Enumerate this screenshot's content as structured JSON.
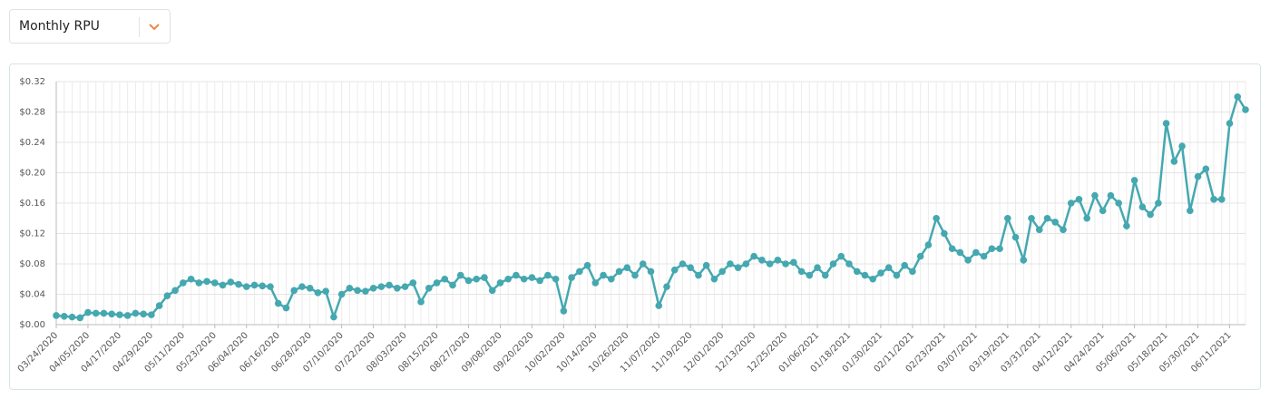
{
  "dropdown": {
    "selected": "Monthly RPU"
  },
  "chart_data": {
    "type": "line",
    "color": "#45a8b0",
    "grid": true,
    "x": [
      "03/24/2020",
      "03/27/2020",
      "03/30/2020",
      "04/02/2020",
      "04/05/2020",
      "04/08/2020",
      "04/11/2020",
      "04/14/2020",
      "04/17/2020",
      "04/20/2020",
      "04/23/2020",
      "04/26/2020",
      "04/29/2020",
      "05/02/2020",
      "05/05/2020",
      "05/08/2020",
      "05/11/2020",
      "05/14/2020",
      "05/17/2020",
      "05/20/2020",
      "05/23/2020",
      "05/26/2020",
      "05/29/2020",
      "06/01/2020",
      "06/04/2020",
      "06/07/2020",
      "06/10/2020",
      "06/13/2020",
      "06/16/2020",
      "06/19/2020",
      "06/22/2020",
      "06/25/2020",
      "06/28/2020",
      "07/01/2020",
      "07/04/2020",
      "07/07/2020",
      "07/10/2020",
      "07/13/2020",
      "07/16/2020",
      "07/19/2020",
      "07/22/2020",
      "07/25/2020",
      "07/28/2020",
      "07/31/2020",
      "08/03/2020",
      "08/06/2020",
      "08/09/2020",
      "08/12/2020",
      "08/15/2020",
      "08/18/2020",
      "08/21/2020",
      "08/24/2020",
      "08/27/2020",
      "08/30/2020",
      "09/02/2020",
      "09/05/2020",
      "09/08/2020",
      "09/11/2020",
      "09/14/2020",
      "09/17/2020",
      "09/20/2020",
      "09/23/2020",
      "09/26/2020",
      "09/29/2020",
      "10/02/2020",
      "10/05/2020",
      "10/08/2020",
      "10/11/2020",
      "10/14/2020",
      "10/17/2020",
      "10/20/2020",
      "10/23/2020",
      "10/26/2020",
      "10/29/2020",
      "11/01/2020",
      "11/04/2020",
      "11/07/2020",
      "11/10/2020",
      "11/13/2020",
      "11/16/2020",
      "11/19/2020",
      "11/22/2020",
      "11/25/2020",
      "11/28/2020",
      "12/01/2020",
      "12/04/2020",
      "12/07/2020",
      "12/10/2020",
      "12/13/2020",
      "12/16/2020",
      "12/19/2020",
      "12/22/2020",
      "12/25/2020",
      "12/28/2020",
      "12/31/2020",
      "01/03/2021",
      "01/06/2021",
      "01/09/2021",
      "01/12/2021",
      "01/15/2021",
      "01/18/2021",
      "01/21/2021",
      "01/24/2021",
      "01/27/2021",
      "01/30/2021",
      "02/02/2021",
      "02/05/2021",
      "02/08/2021",
      "02/11/2021",
      "02/14/2021",
      "02/17/2021",
      "02/20/2021",
      "02/23/2021",
      "02/26/2021",
      "03/01/2021",
      "03/04/2021",
      "03/07/2021",
      "03/10/2021",
      "03/13/2021",
      "03/16/2021",
      "03/19/2021",
      "03/22/2021",
      "03/25/2021",
      "03/28/2021",
      "03/31/2021",
      "04/03/2021",
      "04/06/2021",
      "04/09/2021",
      "04/12/2021",
      "04/15/2021",
      "04/18/2021",
      "04/21/2021",
      "04/24/2021",
      "04/27/2021",
      "04/30/2021",
      "05/03/2021",
      "05/06/2021",
      "05/09/2021",
      "05/12/2021",
      "05/15/2021",
      "05/18/2021",
      "05/21/2021",
      "05/24/2021",
      "05/27/2021",
      "05/30/2021",
      "06/02/2021",
      "06/05/2021",
      "06/08/2021",
      "06/11/2021",
      "06/14/2021",
      "06/17/2021"
    ],
    "values": [
      0.012,
      0.011,
      0.01,
      0.009,
      0.016,
      0.015,
      0.015,
      0.014,
      0.013,
      0.012,
      0.015,
      0.014,
      0.013,
      0.025,
      0.038,
      0.045,
      0.055,
      0.06,
      0.055,
      0.057,
      0.055,
      0.052,
      0.056,
      0.053,
      0.05,
      0.052,
      0.051,
      0.05,
      0.028,
      0.022,
      0.045,
      0.05,
      0.048,
      0.042,
      0.044,
      0.01,
      0.04,
      0.048,
      0.045,
      0.044,
      0.048,
      0.05,
      0.052,
      0.048,
      0.05,
      0.055,
      0.03,
      0.048,
      0.055,
      0.06,
      0.052,
      0.065,
      0.058,
      0.06,
      0.062,
      0.045,
      0.055,
      0.06,
      0.065,
      0.06,
      0.062,
      0.058,
      0.065,
      0.06,
      0.018,
      0.062,
      0.07,
      0.078,
      0.055,
      0.065,
      0.06,
      0.07,
      0.075,
      0.065,
      0.08,
      0.07,
      0.025,
      0.05,
      0.072,
      0.08,
      0.075,
      0.065,
      0.078,
      0.06,
      0.07,
      0.08,
      0.075,
      0.08,
      0.09,
      0.085,
      0.08,
      0.085,
      0.08,
      0.082,
      0.07,
      0.065,
      0.075,
      0.065,
      0.08,
      0.09,
      0.08,
      0.07,
      0.065,
      0.06,
      0.068,
      0.075,
      0.065,
      0.078,
      0.07,
      0.09,
      0.105,
      0.14,
      0.12,
      0.1,
      0.095,
      0.085,
      0.095,
      0.09,
      0.1,
      0.1,
      0.14,
      0.115,
      0.085,
      0.14,
      0.125,
      0.14,
      0.135,
      0.125,
      0.16,
      0.165,
      0.14,
      0.17,
      0.15,
      0.17,
      0.16,
      0.13,
      0.19,
      0.155,
      0.145,
      0.16,
      0.265,
      0.215,
      0.235,
      0.15,
      0.195,
      0.205,
      0.165,
      0.165,
      0.265,
      0.3,
      0.283
    ],
    "xticks": [
      "03/24/2020",
      "04/05/2020",
      "04/17/2020",
      "04/29/2020",
      "05/11/2020",
      "05/23/2020",
      "06/04/2020",
      "06/16/2020",
      "06/28/2020",
      "07/10/2020",
      "07/22/2020",
      "08/03/2020",
      "08/15/2020",
      "08/27/2020",
      "09/08/2020",
      "09/20/2020",
      "10/02/2020",
      "10/14/2020",
      "10/26/2020",
      "11/07/2020",
      "11/19/2020",
      "12/01/2020",
      "12/13/2020",
      "12/25/2020",
      "01/06/2021",
      "01/18/2021",
      "01/30/2021",
      "02/11/2021",
      "02/23/2021",
      "03/07/2021",
      "03/19/2021",
      "03/31/2021",
      "04/12/2021",
      "04/24/2021",
      "05/06/2021",
      "05/18/2021",
      "05/30/2021",
      "06/11/2021"
    ],
    "ylim": [
      0,
      0.32
    ],
    "yticks": [
      {
        "value": 0,
        "label": "$0.00"
      },
      {
        "value": 0.04,
        "label": "$0.04"
      },
      {
        "value": 0.08,
        "label": "$0.08"
      },
      {
        "value": 0.12,
        "label": "$0.12"
      },
      {
        "value": 0.16,
        "label": "$0.16"
      },
      {
        "value": 0.2,
        "label": "$0.20"
      },
      {
        "value": 0.24,
        "label": "$0.24"
      },
      {
        "value": 0.28,
        "label": "$0.28"
      },
      {
        "value": 0.32,
        "label": "$0.32"
      }
    ]
  }
}
